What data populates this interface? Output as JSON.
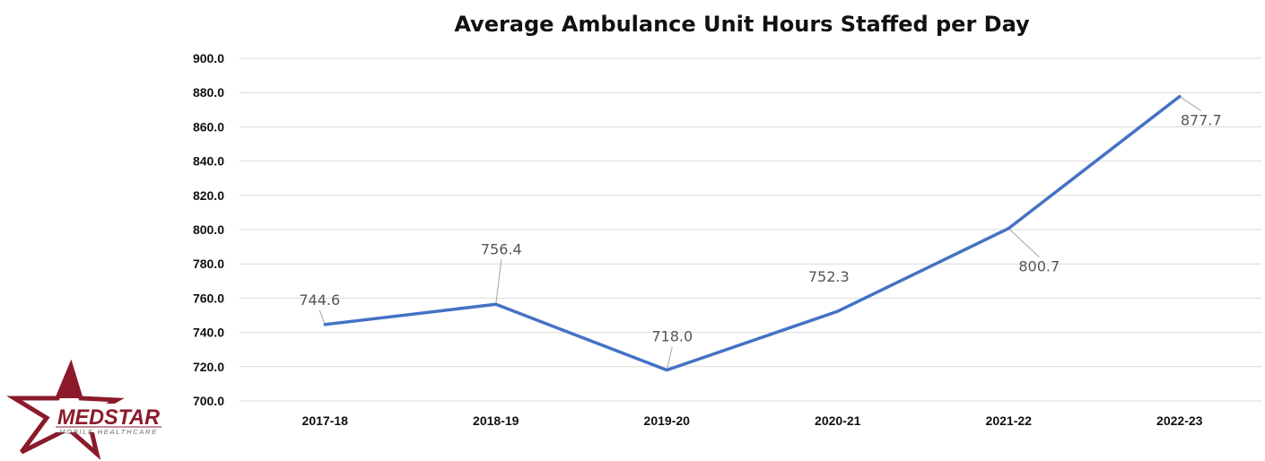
{
  "chart_data": {
    "type": "line",
    "title": "Average Ambulance Unit Hours Staffed per Day",
    "categories": [
      "2017-18",
      "2018-19",
      "2019-20",
      "2020-21",
      "2021-22",
      "2022-23"
    ],
    "series": [
      {
        "values": [
          744.6,
          756.4,
          718.0,
          752.3,
          800.7,
          877.7
        ],
        "color": "#4472c4"
      }
    ],
    "data_labels": [
      "744.6",
      "756.4",
      "718.0",
      "752.3",
      "800.7",
      "877.7"
    ],
    "ylim": [
      700,
      900
    ],
    "yticks": [
      "700.0",
      "720.0",
      "740.0",
      "760.0",
      "780.0",
      "800.0",
      "820.0",
      "840.0",
      "860.0",
      "880.0",
      "900.0"
    ],
    "grid": true,
    "legend": "none"
  },
  "logo": {
    "name": "MEDSTAR",
    "tagline": "MOBILE HEALTHCARE",
    "color": "#8b1a2b"
  }
}
